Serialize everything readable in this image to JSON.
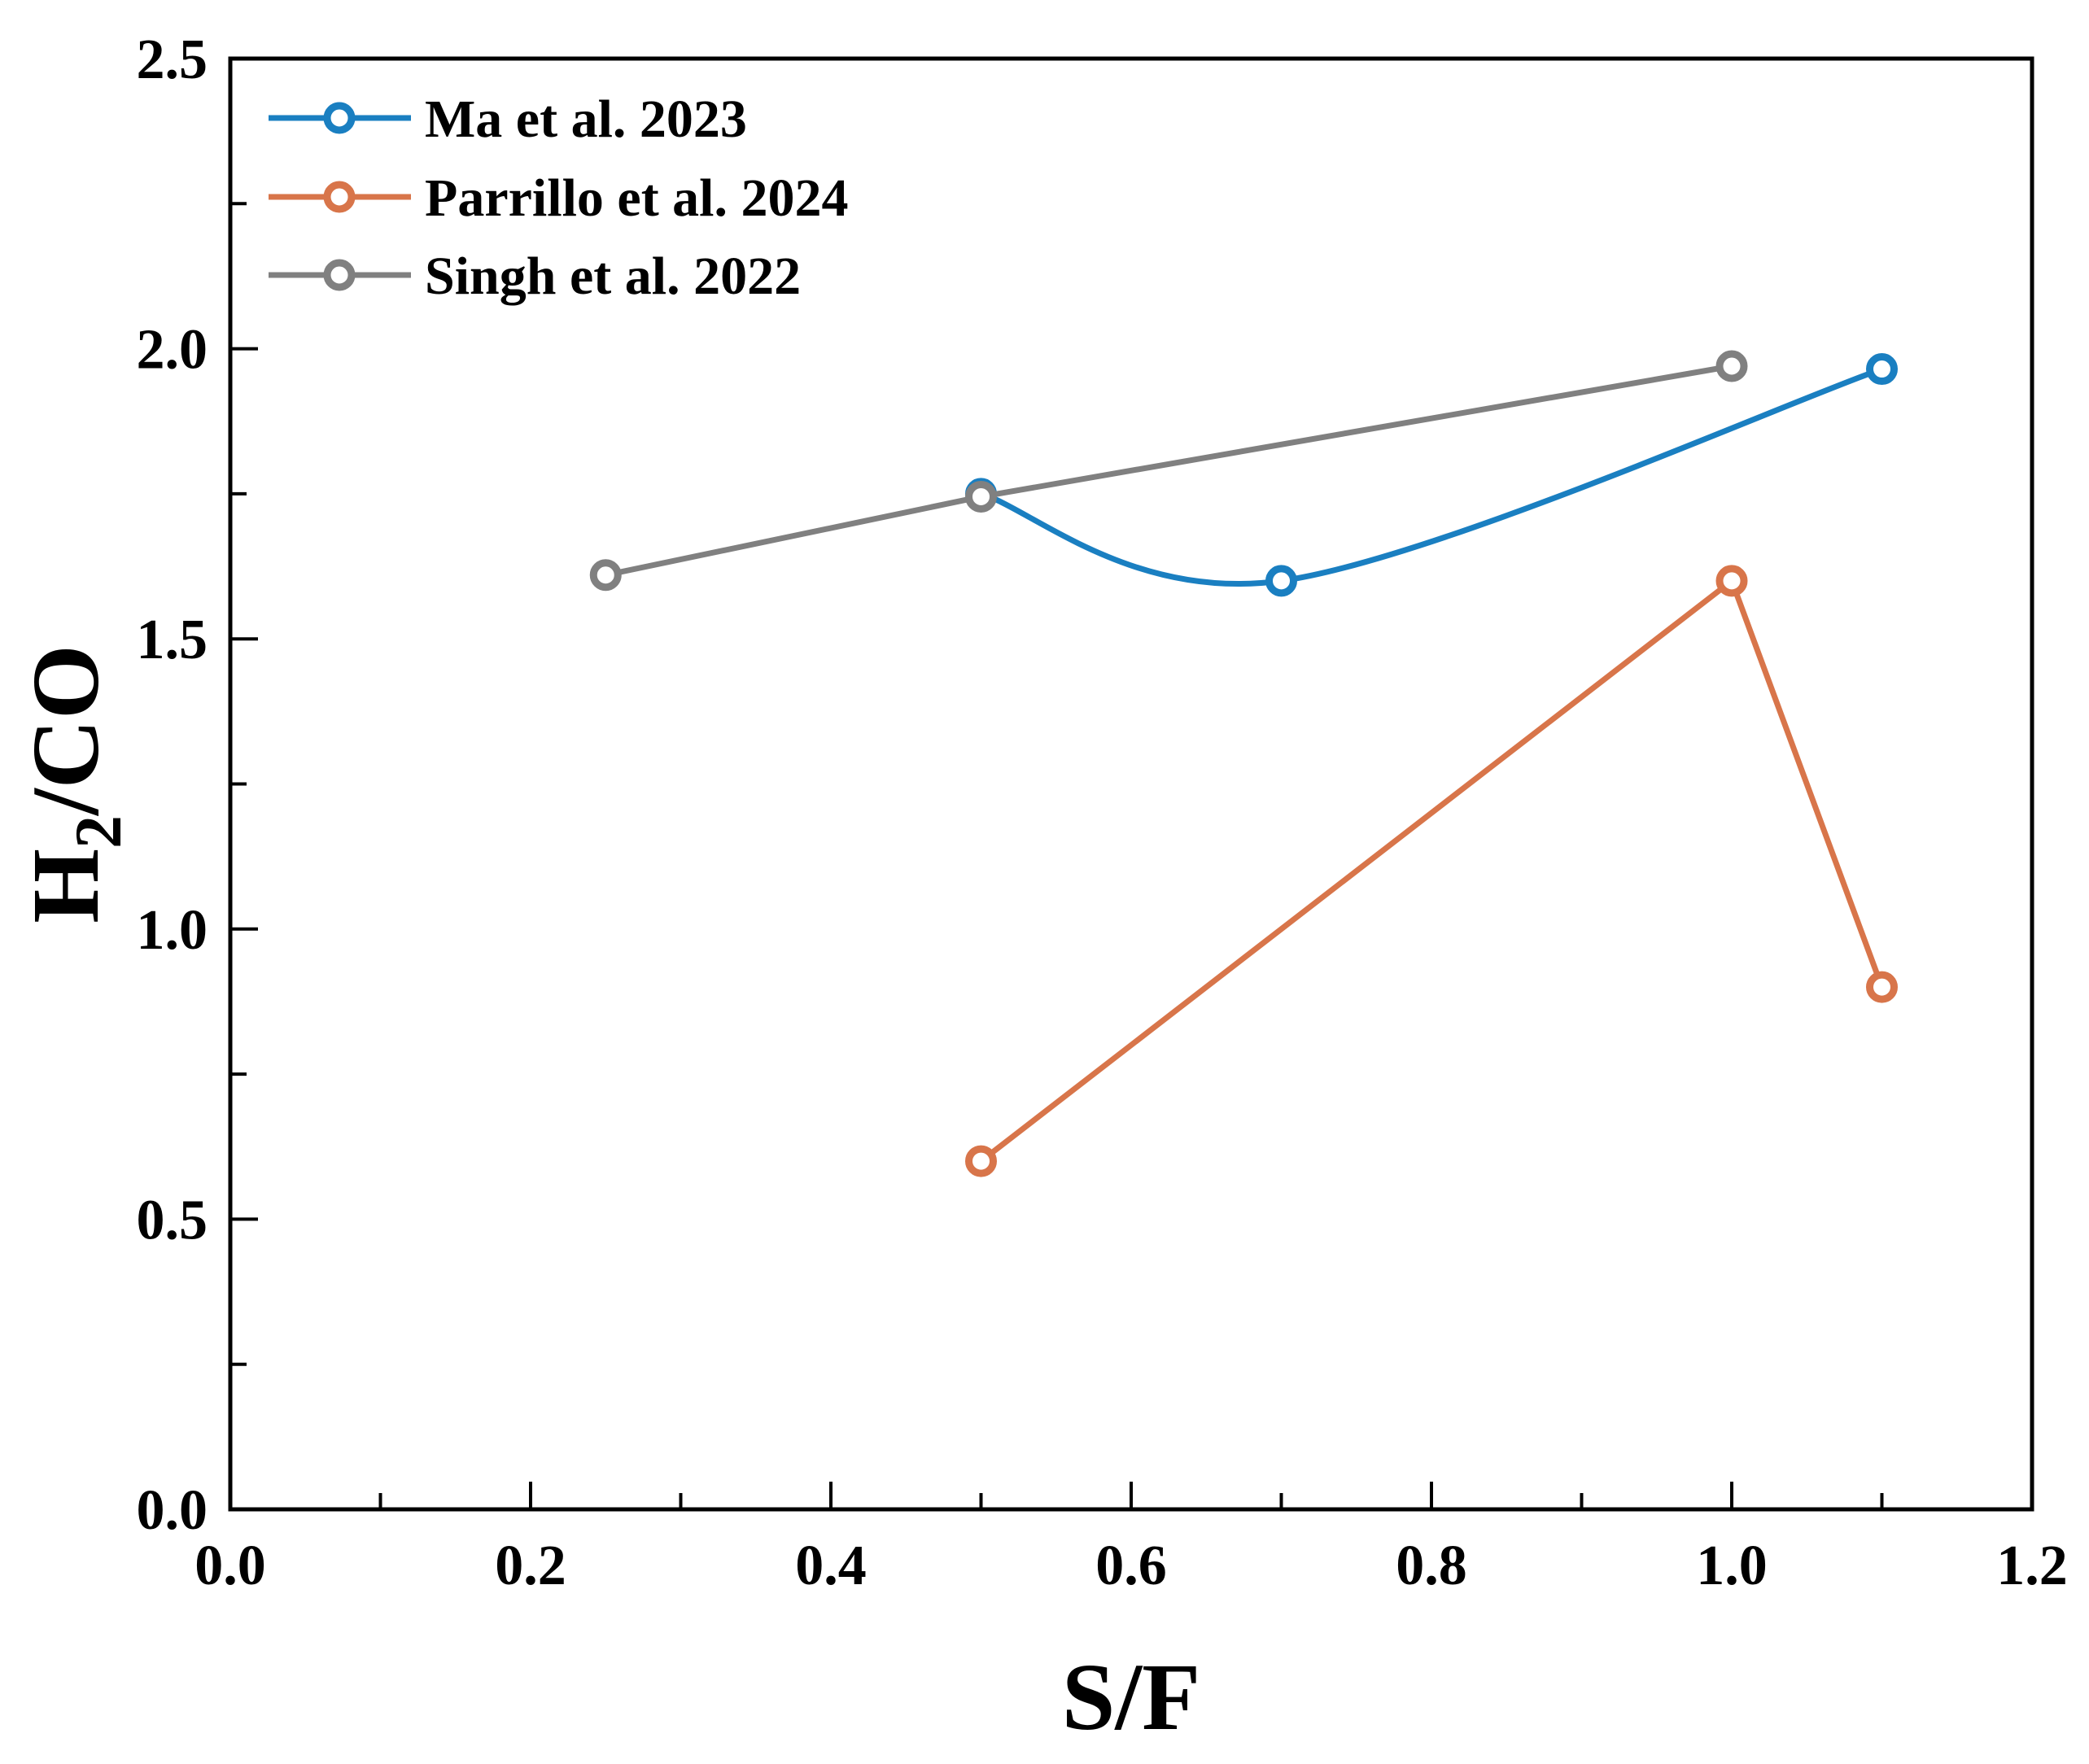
{
  "chart_data": {
    "type": "line",
    "xlabel": "S/F",
    "ylabel": {
      "main": "H",
      "sub": "2",
      "rest": "/CO"
    },
    "xlim": [
      0.0,
      1.2
    ],
    "ylim": [
      0.0,
      2.5
    ],
    "xticks": [
      "0.0",
      "0.2",
      "0.4",
      "0.6",
      "0.8",
      "1.0",
      "1.2"
    ],
    "yticks": [
      "0.0",
      "0.5",
      "1.0",
      "1.5",
      "2.0",
      "2.5"
    ],
    "legend_position": "top-left",
    "series": [
      {
        "name": "Ma et al. 2023",
        "color": "#1a7fc1",
        "smooth": true,
        "x": [
          0.5,
          0.7,
          1.1
        ],
        "y": [
          1.75,
          1.6,
          1.965
        ]
      },
      {
        "name": "Parrillo et al. 2024",
        "color": "#d8754a",
        "smooth": false,
        "x": [
          0.5,
          1.0,
          1.1
        ],
        "y": [
          0.6,
          1.6,
          0.9
        ]
      },
      {
        "name": "Singh et al. 2022",
        "color": "#808080",
        "smooth": false,
        "x": [
          0.25,
          0.5,
          1.0
        ],
        "y": [
          1.61,
          1.745,
          1.97
        ]
      }
    ]
  }
}
